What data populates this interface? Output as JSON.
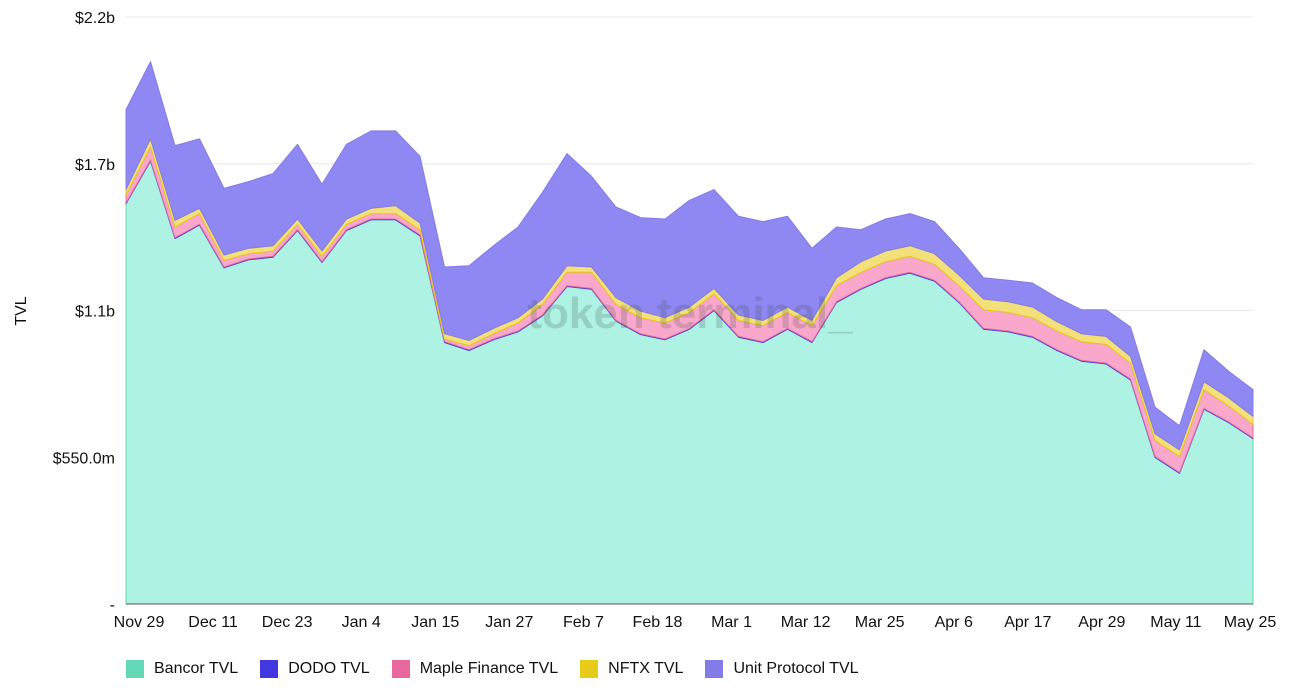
{
  "chart_data": {
    "type": "area",
    "stacked": true,
    "title": "",
    "xlabel": "",
    "ylabel": "TVL",
    "ylim": [
      0,
      2200000000
    ],
    "y_ticks": [
      {
        "value": 0,
        "label": "-"
      },
      {
        "value": 550000000,
        "label": "$550.0m"
      },
      {
        "value": 1100000000,
        "label": "$1.1b"
      },
      {
        "value": 1650000000,
        "label": "$1.7b"
      },
      {
        "value": 2200000000,
        "label": "$2.2b"
      }
    ],
    "x_ticks": [
      "Nov 29",
      "Dec 11",
      "Dec 23",
      "Jan 4",
      "Jan 15",
      "Jan 27",
      "Feb 7",
      "Feb 18",
      "Mar 1",
      "Mar 12",
      "Mar 25",
      "Apr 6",
      "Apr 17",
      "Apr 29",
      "May 11",
      "May 25"
    ],
    "x": [
      "Nov 29",
      "Dec 3",
      "Dec 7",
      "Dec 11",
      "Dec 15",
      "Dec 19",
      "Dec 23",
      "Dec 27",
      "Dec 31",
      "Jan 4",
      "Jan 8",
      "Jan 12",
      "Jan 15",
      "Jan 19",
      "Jan 23",
      "Jan 27",
      "Jan 31",
      "Feb 4",
      "Feb 7",
      "Feb 11",
      "Feb 14",
      "Feb 18",
      "Feb 22",
      "Feb 26",
      "Mar 1",
      "Mar 5",
      "Mar 9",
      "Mar 12",
      "Mar 16",
      "Mar 21",
      "Mar 25",
      "Mar 29",
      "Apr 2",
      "Apr 6",
      "Apr 10",
      "Apr 14",
      "Apr 17",
      "Apr 21",
      "Apr 25",
      "Apr 29",
      "May 3",
      "May 7",
      "May 11",
      "May 14",
      "May 17",
      "May 21",
      "May 25"
    ],
    "series": [
      {
        "name": "Bancor TVL",
        "color": "#adf2e2",
        "legend_color": "#62d8b7",
        "values": [
          1500000000,
          1660000000,
          1370000000,
          1420000000,
          1260000000,
          1290000000,
          1300000000,
          1400000000,
          1280000000,
          1400000000,
          1440000000,
          1440000000,
          1380000000,
          980000000,
          950000000,
          990000000,
          1020000000,
          1080000000,
          1190000000,
          1180000000,
          1060000000,
          1010000000,
          990000000,
          1030000000,
          1100000000,
          1000000000,
          980000000,
          1030000000,
          980000000,
          1130000000,
          1180000000,
          1220000000,
          1240000000,
          1210000000,
          1130000000,
          1030000000,
          1020000000,
          1000000000,
          950000000,
          910000000,
          900000000,
          840000000,
          550000000,
          490000000,
          730000000,
          680000000,
          620000000
        ]
      },
      {
        "name": "DODO TVL",
        "color": "#4338e0",
        "legend_color": "#4338e0",
        "values": [
          3000000,
          3000000,
          3000000,
          3000000,
          3000000,
          3000000,
          3000000,
          3000000,
          3000000,
          3000000,
          3000000,
          3000000,
          3000000,
          3000000,
          3000000,
          3000000,
          3000000,
          3000000,
          3000000,
          3000000,
          3000000,
          3000000,
          3000000,
          3000000,
          3000000,
          3000000,
          3000000,
          3000000,
          3000000,
          3000000,
          3000000,
          3000000,
          3000000,
          3000000,
          3000000,
          3000000,
          3000000,
          3000000,
          3000000,
          3000000,
          3000000,
          3000000,
          3000000,
          3000000,
          3000000,
          3000000,
          3000000
        ]
      },
      {
        "name": "Maple Finance TVL",
        "color": "#f9a8cc",
        "legend_color": "#e8679c",
        "values": [
          30000000,
          50000000,
          40000000,
          40000000,
          25000000,
          20000000,
          20000000,
          20000000,
          20000000,
          20000000,
          20000000,
          20000000,
          20000000,
          10000000,
          15000000,
          20000000,
          30000000,
          40000000,
          50000000,
          60000000,
          60000000,
          60000000,
          60000000,
          60000000,
          60000000,
          60000000,
          60000000,
          60000000,
          60000000,
          60000000,
          60000000,
          60000000,
          60000000,
          60000000,
          60000000,
          70000000,
          70000000,
          70000000,
          70000000,
          70000000,
          70000000,
          60000000,
          60000000,
          60000000,
          70000000,
          60000000,
          50000000
        ]
      },
      {
        "name": "NFTX TVL",
        "color": "#f3e07a",
        "legend_color": "#e6cb18",
        "values": [
          20000000,
          30000000,
          25000000,
          20000000,
          20000000,
          20000000,
          20000000,
          20000000,
          20000000,
          20000000,
          20000000,
          30000000,
          25000000,
          20000000,
          20000000,
          20000000,
          20000000,
          20000000,
          25000000,
          20000000,
          25000000,
          25000000,
          20000000,
          20000000,
          20000000,
          20000000,
          20000000,
          20000000,
          20000000,
          30000000,
          40000000,
          40000000,
          40000000,
          40000000,
          40000000,
          40000000,
          40000000,
          40000000,
          35000000,
          30000000,
          30000000,
          25000000,
          25000000,
          25000000,
          30000000,
          30000000,
          30000000
        ]
      },
      {
        "name": "Unit Protocol TVL",
        "color": "#8f88f3",
        "legend_color": "#847ce6",
        "values": [
          300000000,
          290000000,
          280000000,
          260000000,
          250000000,
          250000000,
          270000000,
          280000000,
          250000000,
          280000000,
          290000000,
          280000000,
          250000000,
          250000000,
          280000000,
          310000000,
          340000000,
          400000000,
          420000000,
          340000000,
          340000000,
          350000000,
          370000000,
          400000000,
          370000000,
          370000000,
          370000000,
          340000000,
          270000000,
          190000000,
          120000000,
          120000000,
          120000000,
          120000000,
          100000000,
          80000000,
          80000000,
          90000000,
          90000000,
          90000000,
          100000000,
          110000000,
          100000000,
          90000000,
          120000000,
          100000000,
          100000000
        ]
      }
    ],
    "watermark": "token terminal_",
    "grid": true,
    "legend_position": "bottom-left"
  }
}
